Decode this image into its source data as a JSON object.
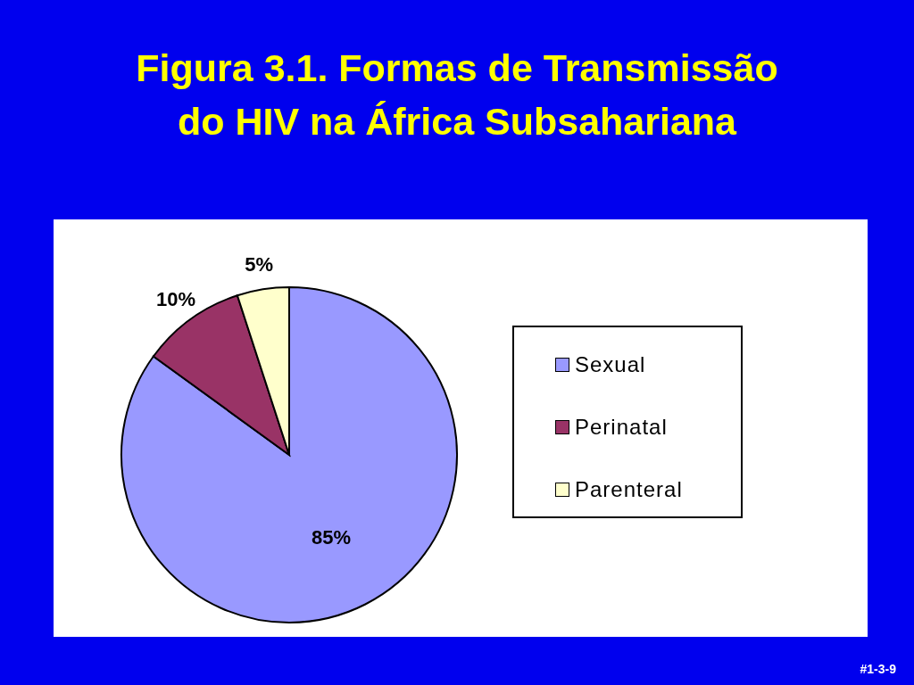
{
  "chart_data": {
    "type": "pie",
    "title": "Figura 3.1. Formas de Transmissão do HIV na África Subsahariana",
    "categories": [
      "Sexual",
      "Perinatal",
      "Parenteral"
    ],
    "values": [
      85,
      10,
      5
    ],
    "colors": [
      "#9999ff",
      "#993366",
      "#ffffcc"
    ],
    "value_labels": [
      "85%",
      "10%",
      "5%"
    ],
    "legend": "right",
    "annotations": [
      "#1-3-9"
    ]
  }
}
